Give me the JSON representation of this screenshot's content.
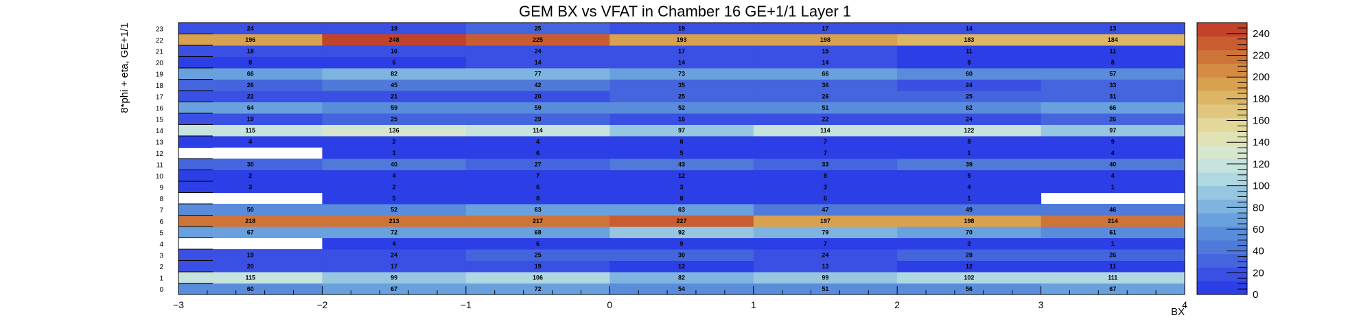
{
  "chart_data": {
    "type": "heatmap",
    "title": "GEM BX vs VFAT in Chamber 16 GE+1/1 Layer 1",
    "xlabel": "BX",
    "ylabel": "8*phi + eta, GE+1/1",
    "xlim": [
      -3,
      4
    ],
    "x_ticks": [
      "−3",
      "−2",
      "−1",
      "0",
      "1",
      "2",
      "3",
      "4"
    ],
    "x_bins": [
      -3,
      -2,
      -1,
      0,
      1,
      2,
      3
    ],
    "y_bins": [
      "0",
      "1",
      "2",
      "3",
      "4",
      "5",
      "6",
      "7",
      "8",
      "9",
      "10",
      "11",
      "12",
      "13",
      "14",
      "15",
      "16",
      "17",
      "18",
      "19",
      "20",
      "21",
      "22",
      "23"
    ],
    "values": [
      [
        60,
        67,
        72,
        54,
        51,
        56,
        67
      ],
      [
        115,
        99,
        106,
        82,
        99,
        102,
        111
      ],
      [
        20,
        17,
        19,
        12,
        13,
        12,
        11
      ],
      [
        19,
        24,
        25,
        30,
        24,
        28,
        26
      ],
      [
        null,
        4,
        6,
        9,
        7,
        2,
        1
      ],
      [
        67,
        72,
        68,
        92,
        79,
        70,
        61
      ],
      [
        218,
        213,
        217,
        227,
        197,
        198,
        214
      ],
      [
        50,
        52,
        63,
        63,
        47,
        49,
        46
      ],
      [
        null,
        5,
        8,
        8,
        6,
        1,
        null
      ],
      [
        3,
        2,
        6,
        3,
        3,
        4,
        1
      ],
      [
        2,
        4,
        7,
        12,
        8,
        5,
        4
      ],
      [
        30,
        40,
        27,
        43,
        33,
        39,
        40
      ],
      [
        null,
        1,
        6,
        5,
        7,
        1,
        4
      ],
      [
        4,
        2,
        4,
        6,
        7,
        8,
        9
      ],
      [
        115,
        136,
        114,
        97,
        114,
        122,
        97
      ],
      [
        19,
        25,
        29,
        16,
        22,
        24,
        26
      ],
      [
        64,
        59,
        59,
        52,
        51,
        62,
        66
      ],
      [
        22,
        21,
        20,
        25,
        26,
        25,
        31
      ],
      [
        26,
        45,
        42,
        35,
        36,
        24,
        33
      ],
      [
        66,
        82,
        77,
        73,
        66,
        60,
        57
      ],
      [
        8,
        6,
        14,
        14,
        14,
        8,
        8
      ],
      [
        18,
        16,
        24,
        17,
        15,
        11,
        11
      ],
      [
        196,
        248,
        225,
        193,
        198,
        183,
        184
      ],
      [
        24,
        18,
        25,
        19,
        17,
        14,
        13
      ]
    ],
    "colorbar": {
      "range": [
        0,
        250
      ],
      "ticks": [
        "0",
        "20",
        "40",
        "60",
        "80",
        "100",
        "120",
        "140",
        "160",
        "180",
        "200",
        "220",
        "240"
      ],
      "tick_values": [
        0,
        20,
        40,
        60,
        80,
        100,
        120,
        140,
        160,
        180,
        200,
        220,
        240
      ],
      "bands": 20,
      "palette": [
        "#2c3ee5",
        "#3a4fe3",
        "#4565de",
        "#507ad9",
        "#5a8cdc",
        "#69a0de",
        "#7fb4e0",
        "#97c6e1",
        "#b0d8e3",
        "#c6e3dd",
        "#d6e6cf",
        "#e0e2b5",
        "#e3d79a",
        "#e0c77d",
        "#dcb565",
        "#d8a150",
        "#d48b43",
        "#cf7439",
        "#c95c31",
        "#c2432a"
      ]
    }
  }
}
